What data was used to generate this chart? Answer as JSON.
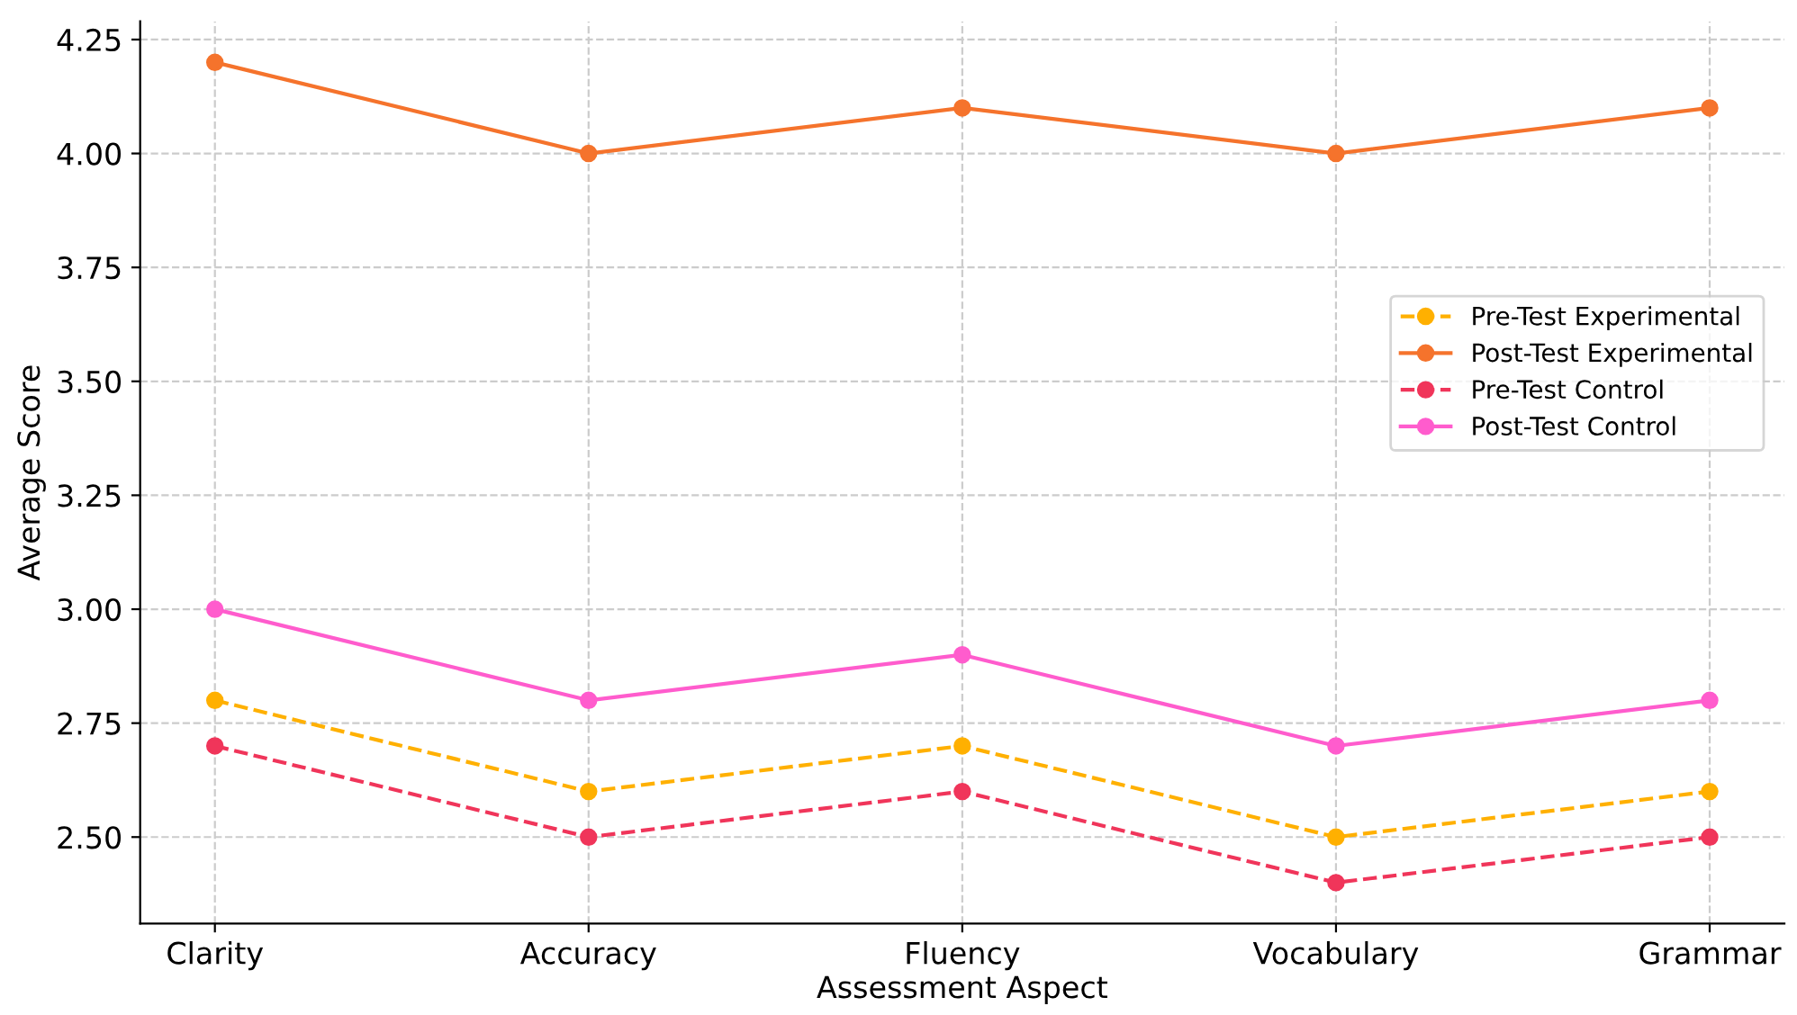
{
  "chart_data": {
    "type": "line",
    "xlabel": "Assessment Aspect",
    "ylabel": "Average Score",
    "categories": [
      "Clarity",
      "Accuracy",
      "Fluency",
      "Vocabulary",
      "Grammar"
    ],
    "series": [
      {
        "name": "Pre-Test Experimental",
        "color": "#ffb000",
        "line_style": "dashed",
        "values": [
          2.8,
          2.6,
          2.7,
          2.5,
          2.6
        ]
      },
      {
        "name": "Post-Test Experimental",
        "color": "#f5732c",
        "line_style": "solid",
        "values": [
          4.2,
          4.0,
          4.1,
          4.0,
          4.1
        ]
      },
      {
        "name": "Pre-Test Control",
        "color": "#f0355a",
        "line_style": "dashed",
        "values": [
          2.7,
          2.5,
          2.6,
          2.4,
          2.5
        ]
      },
      {
        "name": "Post-Test Control",
        "color": "#ff5ccd",
        "line_style": "solid",
        "values": [
          3.0,
          2.8,
          2.9,
          2.7,
          2.8
        ]
      }
    ],
    "ylim": [
      2.31,
      4.29
    ],
    "yticks": [
      {
        "value": 2.5,
        "label": "2.50"
      },
      {
        "value": 2.75,
        "label": "2.75"
      },
      {
        "value": 3.0,
        "label": "3.00"
      },
      {
        "value": 3.25,
        "label": "3.25"
      },
      {
        "value": 3.5,
        "label": "3.50"
      },
      {
        "value": 3.75,
        "label": "3.75"
      },
      {
        "value": 4.0,
        "label": "4.00"
      },
      {
        "value": 4.25,
        "label": "4.25"
      }
    ],
    "grid": true,
    "legend": "right",
    "marker": "circle"
  }
}
